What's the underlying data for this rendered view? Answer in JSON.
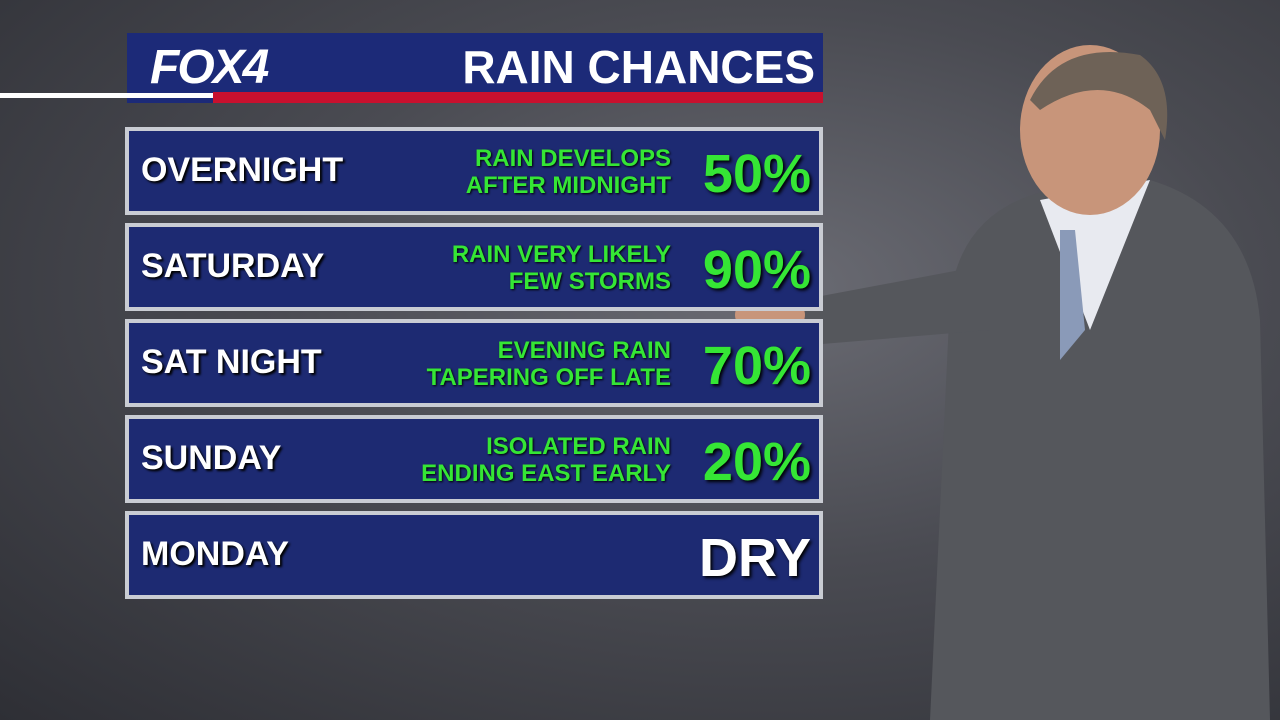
{
  "header": {
    "logo": "FOX4",
    "title": "RAIN CHANCES"
  },
  "rows": [
    {
      "period": "OVERNIGHT",
      "description": [
        "RAIN DEVELOPS",
        "AFTER MIDNIGHT"
      ],
      "chance": "50%",
      "chance_color": "#35e635"
    },
    {
      "period": "SATURDAY",
      "description": [
        "RAIN VERY LIKELY",
        "FEW STORMS"
      ],
      "chance": "90%",
      "chance_color": "#35e635"
    },
    {
      "period": "SAT NIGHT",
      "description": [
        "EVENING RAIN",
        "TAPERING OFF LATE"
      ],
      "chance": "70%",
      "chance_color": "#35e635"
    },
    {
      "period": "SUNDAY",
      "description": [
        "ISOLATED RAIN",
        "ENDING EAST EARLY"
      ],
      "chance": "20%",
      "chance_color": "#35e635"
    },
    {
      "period": "MONDAY",
      "description": [],
      "chance": "DRY",
      "chance_color": "#ffffff"
    }
  ]
}
